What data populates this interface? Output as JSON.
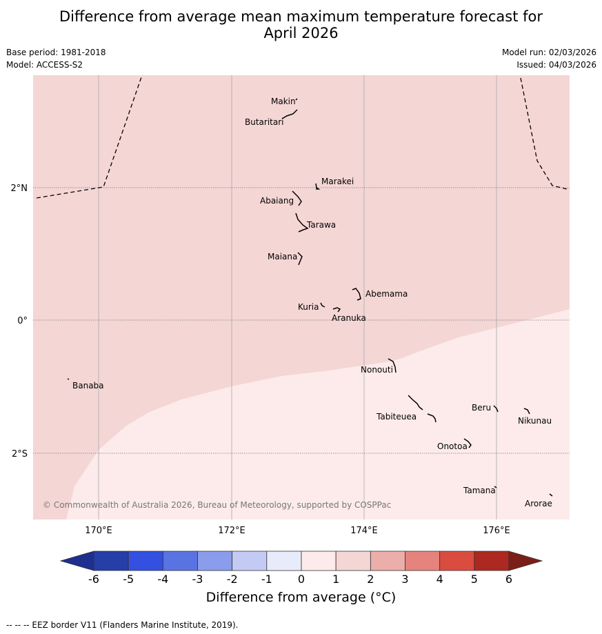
{
  "title_line1": "Difference from average mean maximum temperature forecast for",
  "title_line2": "April 2026",
  "base_period": "Base period: 1981-2018",
  "model": "Model: ACCESS-S2",
  "model_run": "Model run: 02/03/2026",
  "issued": "Issued: 04/03/2026",
  "lon_ticks": [
    "170°E",
    "172°E",
    "174°E",
    "176°E"
  ],
  "lat_ticks": [
    "2°N",
    "0°",
    "2°S"
  ],
  "islands": [
    {
      "name": "Makin"
    },
    {
      "name": "Butaritari"
    },
    {
      "name": "Marakei"
    },
    {
      "name": "Abaiang"
    },
    {
      "name": "Tarawa"
    },
    {
      "name": "Maiana"
    },
    {
      "name": "Abemama"
    },
    {
      "name": "Kuria"
    },
    {
      "name": "Aranuka"
    },
    {
      "name": "Banaba"
    },
    {
      "name": "Nonouti"
    },
    {
      "name": "Beru"
    },
    {
      "name": "Nikunau"
    },
    {
      "name": "Tabiteuea"
    },
    {
      "name": "Onotoa"
    },
    {
      "name": "Tamana"
    },
    {
      "name": "Arorae"
    }
  ],
  "copyright": "© Commonwealth of Australia 2026, Bureau of Meteorology, supported by COSPPac",
  "colorbar": {
    "ticks": [
      "-6",
      "-5",
      "-4",
      "-3",
      "-2",
      "-1",
      "0",
      "1",
      "2",
      "3",
      "4",
      "5",
      "6"
    ],
    "colors": [
      "#1e2f8f",
      "#253ea8",
      "#3350e0",
      "#5a73e2",
      "#8a9cec",
      "#c3cbf5",
      "#e8ebfa",
      "#fcebea",
      "#f4d6d5",
      "#ecaeaa",
      "#e5837c",
      "#da4c40",
      "#ad2820",
      "#7c1e18"
    ],
    "label": "Difference from average (°C)"
  },
  "map_colors": {
    "band_1_2": "#f4d6d5",
    "band_0_1": "#fcebea"
  },
  "footnote": "--  --  -- EEZ border V11 (Flanders Marine Institute, 2019)."
}
